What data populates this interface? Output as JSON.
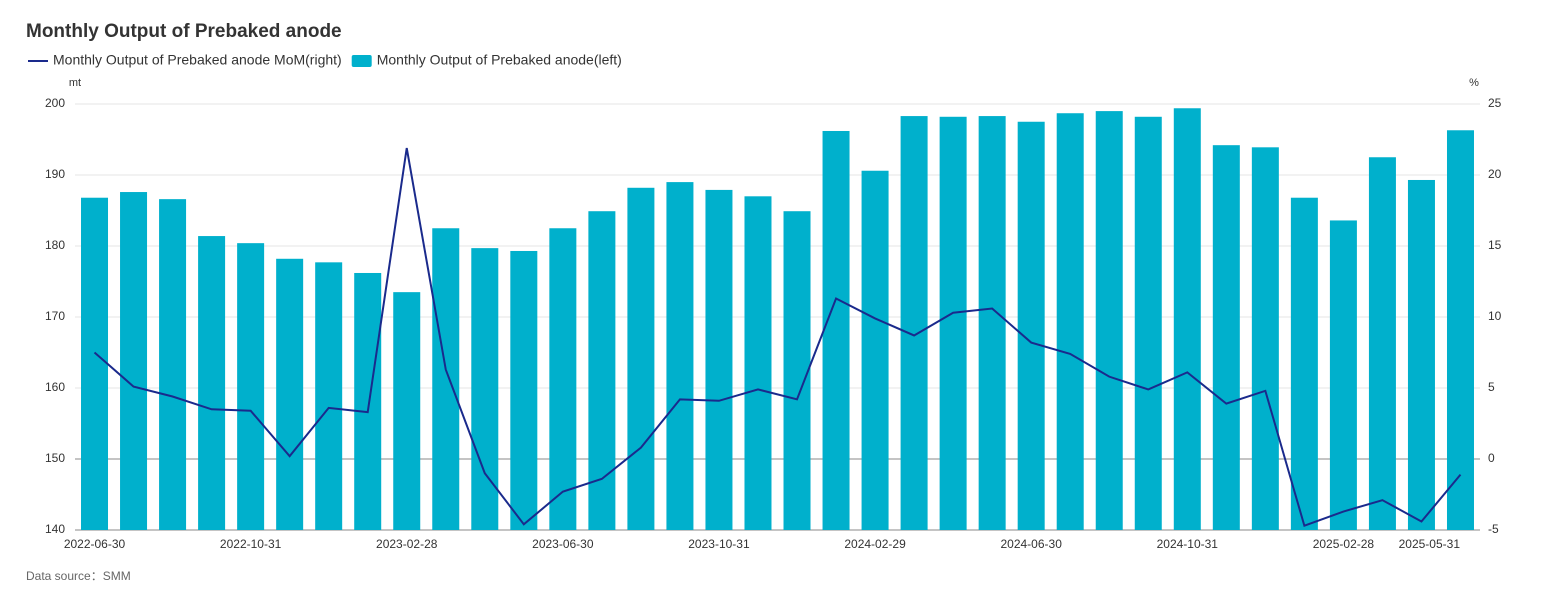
{
  "chart_data": {
    "type": "bar",
    "title": "Monthly Output of Prebaked anode",
    "y_unit": "mt",
    "y2_unit": "%",
    "source": "Data source：SMM",
    "categories": [
      "2022-06-30",
      null,
      null,
      null,
      "2022-10-31",
      null,
      null,
      null,
      "2023-02-28",
      null,
      null,
      null,
      "2023-06-30",
      null,
      null,
      null,
      "2023-10-31",
      null,
      null,
      null,
      "2024-02-29",
      null,
      null,
      null,
      "2024-06-30",
      null,
      null,
      null,
      "2024-10-31",
      null,
      null,
      null,
      "2025-02-28",
      null,
      null,
      "2025-05-31"
    ],
    "series": [
      {
        "name": "Monthly Output of Prebaked anode MoM(right)",
        "type": "line",
        "axis": "y2",
        "color": "#1a2a8c",
        "values": [
          7.5,
          5.1,
          4.4,
          3.5,
          3.4,
          0.2,
          3.6,
          3.3,
          21.9,
          6.3,
          -1.0,
          -4.6,
          -2.3,
          -1.4,
          0.8,
          4.2,
          4.1,
          4.9,
          4.2,
          11.3,
          9.9,
          8.7,
          10.3,
          10.6,
          8.2,
          7.4,
          5.8,
          4.9,
          6.1,
          3.9,
          4.8,
          -4.7,
          -3.7,
          -2.9,
          -4.4,
          -1.1
        ]
      },
      {
        "name": "Monthly Output of Prebaked anode(left)",
        "type": "bar",
        "color": "#00b0cc",
        "values": [
          186.8,
          187.6,
          186.6,
          181.4,
          180.4,
          178.2,
          177.7,
          176.2,
          173.5,
          182.5,
          179.7,
          179.3,
          182.5,
          184.9,
          188.2,
          189.0,
          187.9,
          187.0,
          184.9,
          196.2,
          190.6,
          198.3,
          198.2,
          198.3,
          197.5,
          198.7,
          199.0,
          198.2,
          199.4,
          194.2,
          193.9,
          186.8,
          183.6,
          192.5,
          189.3,
          196.3
        ]
      }
    ],
    "ylim": [
      140,
      200
    ],
    "yticks": [
      140,
      150,
      160,
      170,
      180,
      190,
      200
    ],
    "y2lim": [
      -5,
      25
    ],
    "y2ticks": [
      -5,
      0,
      5,
      10,
      15,
      20,
      25
    ],
    "grid": true
  }
}
